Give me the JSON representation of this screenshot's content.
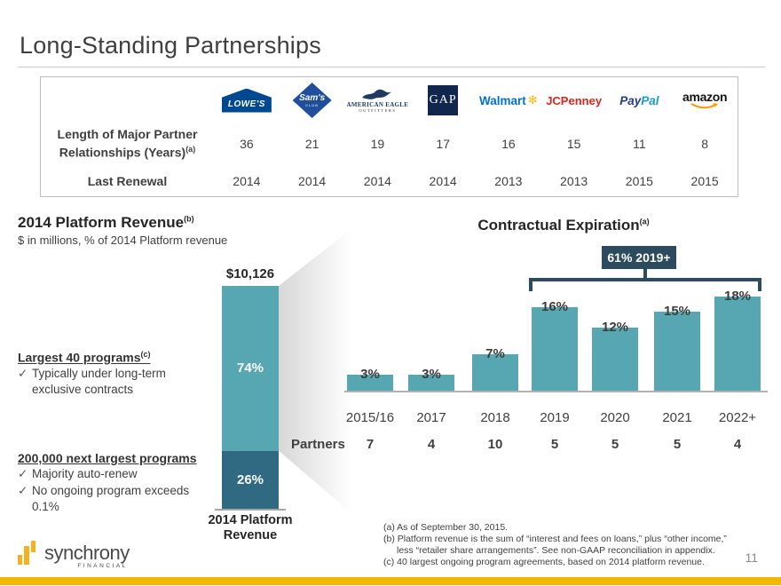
{
  "slide": {
    "title": "Long-Standing Partnerships",
    "page_number": "11",
    "colors": {
      "teal": "#57A7B2",
      "navy_segment": "#2F6A82",
      "dark_navy": "#2C4B5E",
      "gold": "#F5B800",
      "text": "#404040"
    }
  },
  "partner_table": {
    "row1_label": "Length of Major Partner Relationships (Years)",
    "row1_superscript": "(a)",
    "row2_label": "Last Renewal",
    "partners": [
      {
        "name": "Lowe's",
        "logo_text": "LOWE'S",
        "years": "36",
        "renewal": "2014"
      },
      {
        "name": "Sam's Club",
        "logo_text": "Sam's",
        "logo_sub": "CLUB",
        "years": "21",
        "renewal": "2014"
      },
      {
        "name": "American Eagle Outfitters",
        "logo_text": "AMERICAN EAGLE",
        "logo_sub": "OUTFITTERS",
        "years": "19",
        "renewal": "2014"
      },
      {
        "name": "Gap",
        "logo_text": "GAP",
        "years": "17",
        "renewal": "2014"
      },
      {
        "name": "Walmart",
        "logo_text": "Walmart",
        "years": "16",
        "renewal": "2013"
      },
      {
        "name": "JCPenney",
        "logo_text": "JCPenney",
        "years": "15",
        "renewal": "2013"
      },
      {
        "name": "PayPal",
        "logo_text_1": "Pay",
        "logo_text_2": "Pal",
        "years": "11",
        "renewal": "2015"
      },
      {
        "name": "Amazon",
        "logo_text": "amazon",
        "years": "8",
        "renewal": "2015"
      }
    ]
  },
  "left_section": {
    "heading": "2014 Platform Revenue",
    "heading_superscript": "(b)",
    "subtitle": "$ in millions, % of 2014 Platform revenue",
    "largest_programs": {
      "heading": "Largest 40 programs",
      "superscript": "(c)",
      "bullets": [
        "Typically under long-term exclusive contracts"
      ]
    },
    "next_programs": {
      "heading": "200,000 next largest programs",
      "bullets": [
        "Majority auto-renew",
        "No ongoing program exceeds 0.1%"
      ]
    }
  },
  "chart_data": [
    {
      "type": "bar",
      "subtype": "stacked-column",
      "title": "2014 Platform Revenue",
      "unit": "$ in millions, % of 2014 Platform revenue",
      "total": "$10,126",
      "category": "2014 Platform Revenue",
      "segments": [
        {
          "name": "Largest 40 programs",
          "value_pct": 74,
          "label": "74%",
          "color": "#57A7B2",
          "position": "top"
        },
        {
          "name": "200,000 next largest programs",
          "value_pct": 26,
          "label": "26%",
          "color": "#2F6A82",
          "position": "bottom"
        }
      ]
    },
    {
      "type": "bar",
      "title": "Contractual Expiration",
      "title_superscript": "(a)",
      "categories": [
        "2015/16",
        "2017",
        "2018",
        "2019",
        "2020",
        "2021",
        "2022+"
      ],
      "values": [
        3,
        3,
        7,
        16,
        12,
        15,
        18
      ],
      "value_labels": [
        "3%",
        "3%",
        "7%",
        "16%",
        "12%",
        "15%",
        "18%"
      ],
      "bar_color": "#57A7B2",
      "ylim": [
        0,
        20
      ],
      "unit": "%",
      "partners_row": {
        "label": "Partners",
        "values": [
          "7",
          "4",
          "10",
          "5",
          "5",
          "5",
          "4"
        ]
      },
      "annotation": {
        "text": "61% 2019+",
        "covers": [
          "2019",
          "2020",
          "2021",
          "2022+"
        ]
      }
    }
  ],
  "footnotes": [
    "(a) As of September 30, 2015.",
    "(b) Platform revenue is the sum of “interest and fees on loans,” plus “other income,”",
    "less “retailer share arrangements”.  See non-GAAP reconciliation in appendix.",
    "(c) 40 largest ongoing program agreements, based on 2014 platform revenue."
  ],
  "logo": {
    "name": "synchrony",
    "sub": "FINANCIAL"
  }
}
